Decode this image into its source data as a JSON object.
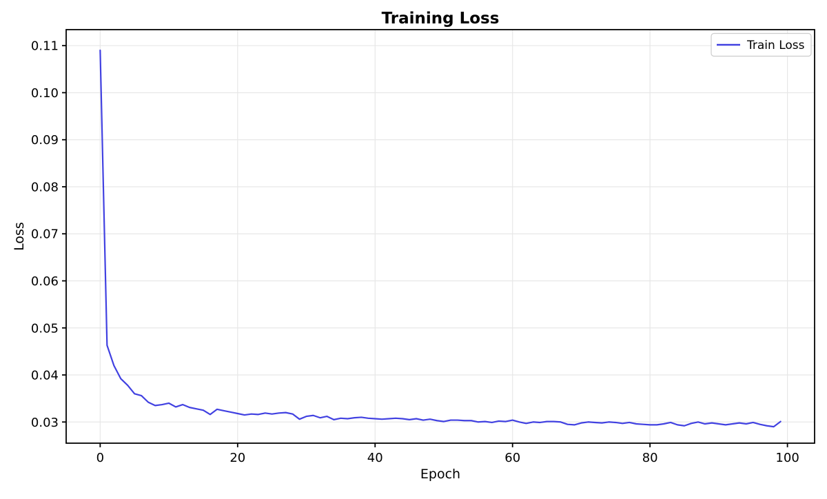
{
  "chart_data": {
    "type": "line",
    "title": "Training Loss",
    "xlabel": "Epoch",
    "ylabel": "Loss",
    "grid": true,
    "legend": {
      "position": "upper right",
      "entries": [
        "Train Loss"
      ]
    },
    "x_ticks": [
      0,
      20,
      40,
      60,
      80,
      100
    ],
    "x_tick_labels": [
      "0",
      "20",
      "40",
      "60",
      "80",
      "100"
    ],
    "y_ticks": [
      0.03,
      0.04,
      0.05,
      0.06,
      0.07,
      0.08,
      0.09,
      0.1,
      0.11
    ],
    "y_tick_labels": [
      "0.03",
      "0.04",
      "0.05",
      "0.06",
      "0.07",
      "0.08",
      "0.09",
      "0.10",
      "0.11"
    ],
    "xlim": [
      -4.95,
      103.95
    ],
    "ylim": [
      0.0255,
      0.1134
    ],
    "series": [
      {
        "name": "Train Loss",
        "color": "#4141e1",
        "x_start": 0,
        "x_step": 1,
        "values": [
          0.109,
          0.0463,
          0.042,
          0.0392,
          0.0378,
          0.036,
          0.0356,
          0.0342,
          0.0335,
          0.0337,
          0.034,
          0.0332,
          0.0337,
          0.0331,
          0.0328,
          0.0325,
          0.0316,
          0.0327,
          0.0324,
          0.0321,
          0.0318,
          0.0315,
          0.0317,
          0.0316,
          0.0319,
          0.0317,
          0.0319,
          0.032,
          0.0317,
          0.0306,
          0.0312,
          0.0314,
          0.0309,
          0.0312,
          0.0305,
          0.0308,
          0.0307,
          0.0309,
          0.031,
          0.0308,
          0.0307,
          0.0306,
          0.0307,
          0.0308,
          0.0307,
          0.0305,
          0.0307,
          0.0304,
          0.0306,
          0.0303,
          0.0301,
          0.0304,
          0.0304,
          0.0303,
          0.0303,
          0.03,
          0.0301,
          0.0299,
          0.0302,
          0.0301,
          0.0304,
          0.03,
          0.0297,
          0.03,
          0.0299,
          0.0301,
          0.0301,
          0.03,
          0.0295,
          0.0294,
          0.0298,
          0.03,
          0.0299,
          0.0298,
          0.03,
          0.0299,
          0.0297,
          0.0299,
          0.0296,
          0.0295,
          0.0294,
          0.0294,
          0.0296,
          0.0299,
          0.0294,
          0.0292,
          0.0297,
          0.03,
          0.0296,
          0.0298,
          0.0296,
          0.0294,
          0.0296,
          0.0298,
          0.0296,
          0.0299,
          0.0295,
          0.0292,
          0.029,
          0.0301
        ]
      }
    ]
  },
  "colors": {
    "background": "#ffffff",
    "grid": "#e7e7e7",
    "axis": "#000000",
    "text": "#000000",
    "legend_border": "#cccccc",
    "line": "#4141e1"
  }
}
